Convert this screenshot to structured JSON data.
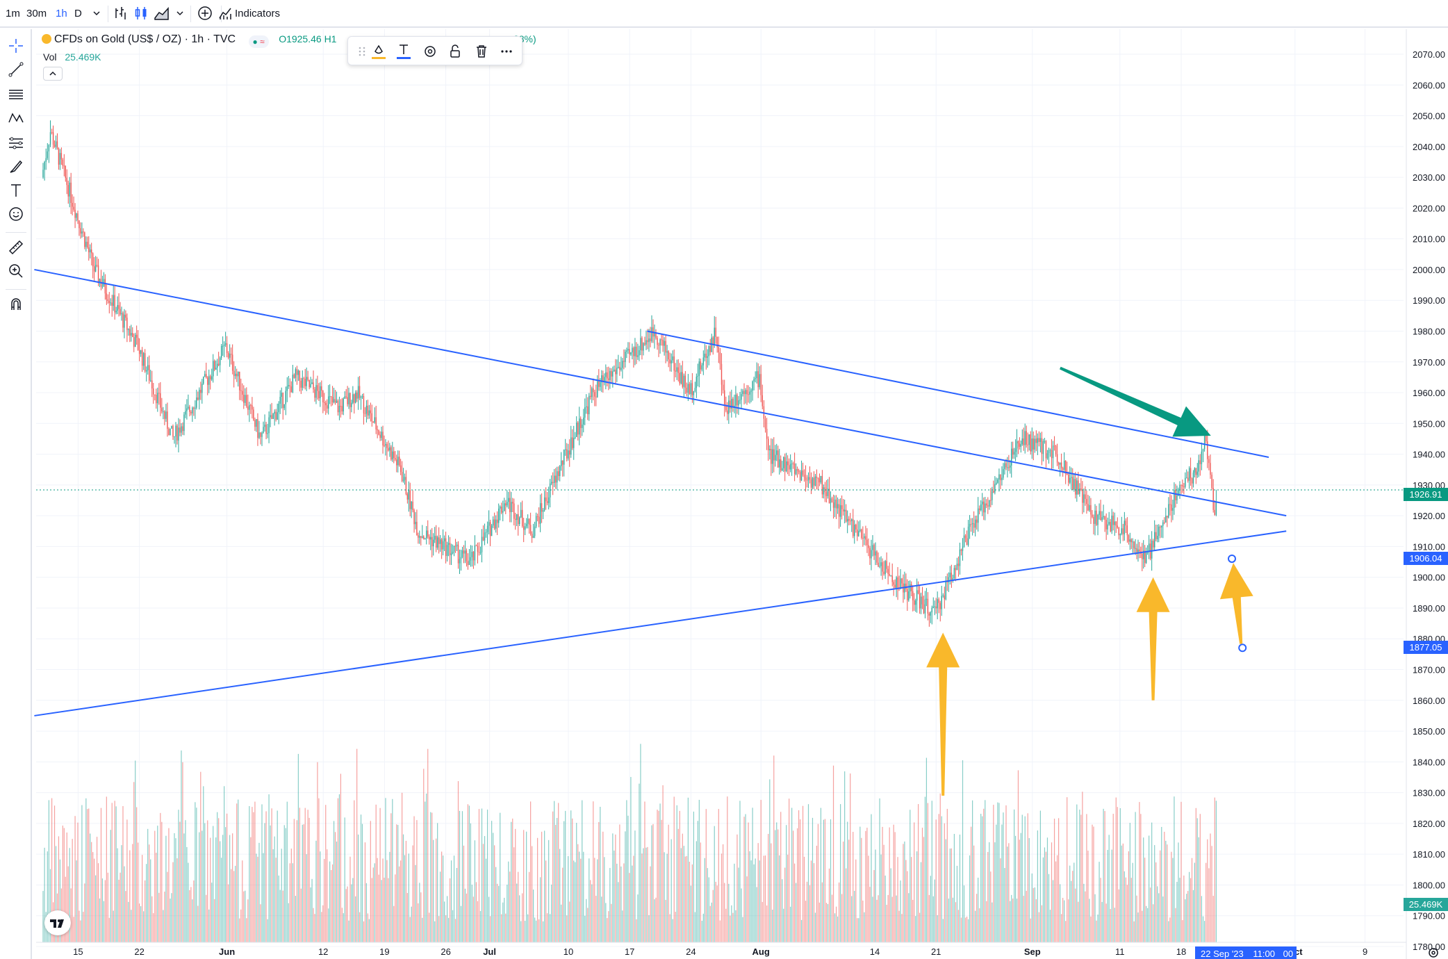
{
  "toolbar": {
    "intervals": [
      "1m",
      "30m",
      "1h",
      "D"
    ],
    "active_interval": "1h",
    "indicators_label": "Indicators"
  },
  "legend": {
    "symbol": "CFDs on Gold (US$ / OZ) · 1h · TVC",
    "ohlc_fragment": "O1925.46  H1",
    "change_fragment": "08%)",
    "vol_label": "Vol",
    "vol_value": "25.469K"
  },
  "left_tools": [
    "crosshair-icon",
    "trend-line-icon",
    "fib-icon",
    "pattern-icon",
    "prediction-icon",
    "brush-icon",
    "text-icon",
    "emoji-icon",
    "ruler-icon",
    "zoom-icon",
    "magnet-icon"
  ],
  "floating_toolbar": [
    "drag-handle-icon",
    "fill-color-icon",
    "text-color-icon",
    "settings-icon",
    "lock-icon",
    "delete-icon",
    "more-icon"
  ],
  "price_axis": {
    "ticks": [
      "2070.00",
      "2060.00",
      "2050.00",
      "2040.00",
      "2030.00",
      "2020.00",
      "2010.00",
      "2000.00",
      "1990.00",
      "1980.00",
      "1970.00",
      "1960.00",
      "1950.00",
      "1940.00",
      "1930.00",
      "1920.00",
      "1910.00",
      "1900.00",
      "1890.00",
      "1880.00",
      "1870.00",
      "1860.00",
      "1850.00",
      "1840.00",
      "1830.00",
      "1820.00",
      "1810.00",
      "1800.00",
      "1790.00",
      "1780.00"
    ],
    "labels": [
      {
        "value": 1926.91,
        "text": "1926.91",
        "color": "#089981"
      },
      {
        "value": 1906.04,
        "text": "1906.04",
        "color": "#2962ff"
      },
      {
        "value": 1877.05,
        "text": "1877.05",
        "color": "#2962ff"
      },
      {
        "value": 1793.5,
        "text": "25.469K",
        "color": "#26a69a"
      }
    ]
  },
  "time_axis": {
    "ticks": [
      "15",
      "22",
      "Jun",
      "12",
      "19",
      "26",
      "Jul",
      "10",
      "17",
      "24",
      "Aug",
      "14",
      "21",
      "Sep",
      "11",
      "18",
      "Oct",
      "9"
    ],
    "crosshair_date": "22 Sep '23",
    "crosshair_time": "11:00",
    "crosshair_suffix": "00"
  },
  "chart_data": {
    "type": "candlestick",
    "symbol": "CFDs on Gold (US$ / OZ)",
    "interval": "1h",
    "last_price": 1926.91,
    "volume": "25.469K",
    "ylim": [
      1780,
      2070
    ],
    "swing_path": [
      {
        "date": "May 11",
        "price": 2030
      },
      {
        "date": "May 12",
        "price": 2045
      },
      {
        "date": "May 17",
        "price": 2000
      },
      {
        "date": "May 22",
        "price": 1975
      },
      {
        "date": "May 26",
        "price": 1945
      },
      {
        "date": "Jun 1",
        "price": 1975
      },
      {
        "date": "Jun 5",
        "price": 1945
      },
      {
        "date": "Jun 9",
        "price": 1965
      },
      {
        "date": "Jun 14",
        "price": 1955
      },
      {
        "date": "Jun 16",
        "price": 1960
      },
      {
        "date": "Jun 21",
        "price": 1935
      },
      {
        "date": "Jun 23",
        "price": 1915
      },
      {
        "date": "Jun 29",
        "price": 1905
      },
      {
        "date": "Jul 3",
        "price": 1925
      },
      {
        "date": "Jul 6",
        "price": 1915
      },
      {
        "date": "Jul 13",
        "price": 1960
      },
      {
        "date": "Jul 20",
        "price": 1980
      },
      {
        "date": "Jul 24",
        "price": 1960
      },
      {
        "date": "Jul 27",
        "price": 1980
      },
      {
        "date": "Jul 28",
        "price": 1955
      },
      {
        "date": "Aug 1",
        "price": 1965
      },
      {
        "date": "Aug 2",
        "price": 1940
      },
      {
        "date": "Aug 8",
        "price": 1930
      },
      {
        "date": "Aug 16",
        "price": 1900
      },
      {
        "date": "Aug 21",
        "price": 1888
      },
      {
        "date": "Aug 25",
        "price": 1915
      },
      {
        "date": "Aug 29",
        "price": 1935
      },
      {
        "date": "Aug 31",
        "price": 1945
      },
      {
        "date": "Sep 4",
        "price": 1940
      },
      {
        "date": "Sep 8",
        "price": 1920
      },
      {
        "date": "Sep 12",
        "price": 1915
      },
      {
        "date": "Sep 14",
        "price": 1905
      },
      {
        "date": "Sep 18",
        "price": 1930
      },
      {
        "date": "Sep 20",
        "price": 1935
      },
      {
        "date": "Sep 21",
        "price": 1945
      },
      {
        "date": "Sep 22",
        "price": 1920
      },
      {
        "date": "Sep 22",
        "price": 1926.91
      }
    ],
    "trend_lines": [
      {
        "name": "upper-descending",
        "from": {
          "date": "May 10",
          "price": 2000
        },
        "to": {
          "date": "Sep 30",
          "price": 1920
        }
      },
      {
        "name": "upper-parallel-descending",
        "from": {
          "date": "Jul 19",
          "price": 1980
        },
        "to": {
          "date": "Sep 28",
          "price": 1939
        }
      },
      {
        "name": "lower-ascending",
        "from": {
          "date": "May 10",
          "price": 1855
        },
        "to": {
          "date": "Sep 30",
          "price": 1915
        }
      }
    ],
    "annotations": [
      {
        "type": "arrow",
        "color": "#089981",
        "direction": "down",
        "target": {
          "date": "Sep 21",
          "price": 1946
        }
      },
      {
        "type": "arrow",
        "color": "#f9b82b",
        "direction": "up",
        "target": {
          "date": "Aug 21",
          "price": 1882
        }
      },
      {
        "type": "arrow",
        "color": "#f9b82b",
        "direction": "up",
        "target": {
          "date": "Sep 14",
          "price": 1900
        }
      },
      {
        "type": "arrow",
        "color": "#f9b82b",
        "direction": "up",
        "target": {
          "date": "Sep 23",
          "price": 1906
        }
      }
    ]
  },
  "colors": {
    "up": "#26a69a",
    "down": "#ef5350",
    "trendline": "#2962ff",
    "arrow_teal": "#089981",
    "arrow_yellow": "#f9b82b",
    "grid": "#f0f3fa"
  }
}
